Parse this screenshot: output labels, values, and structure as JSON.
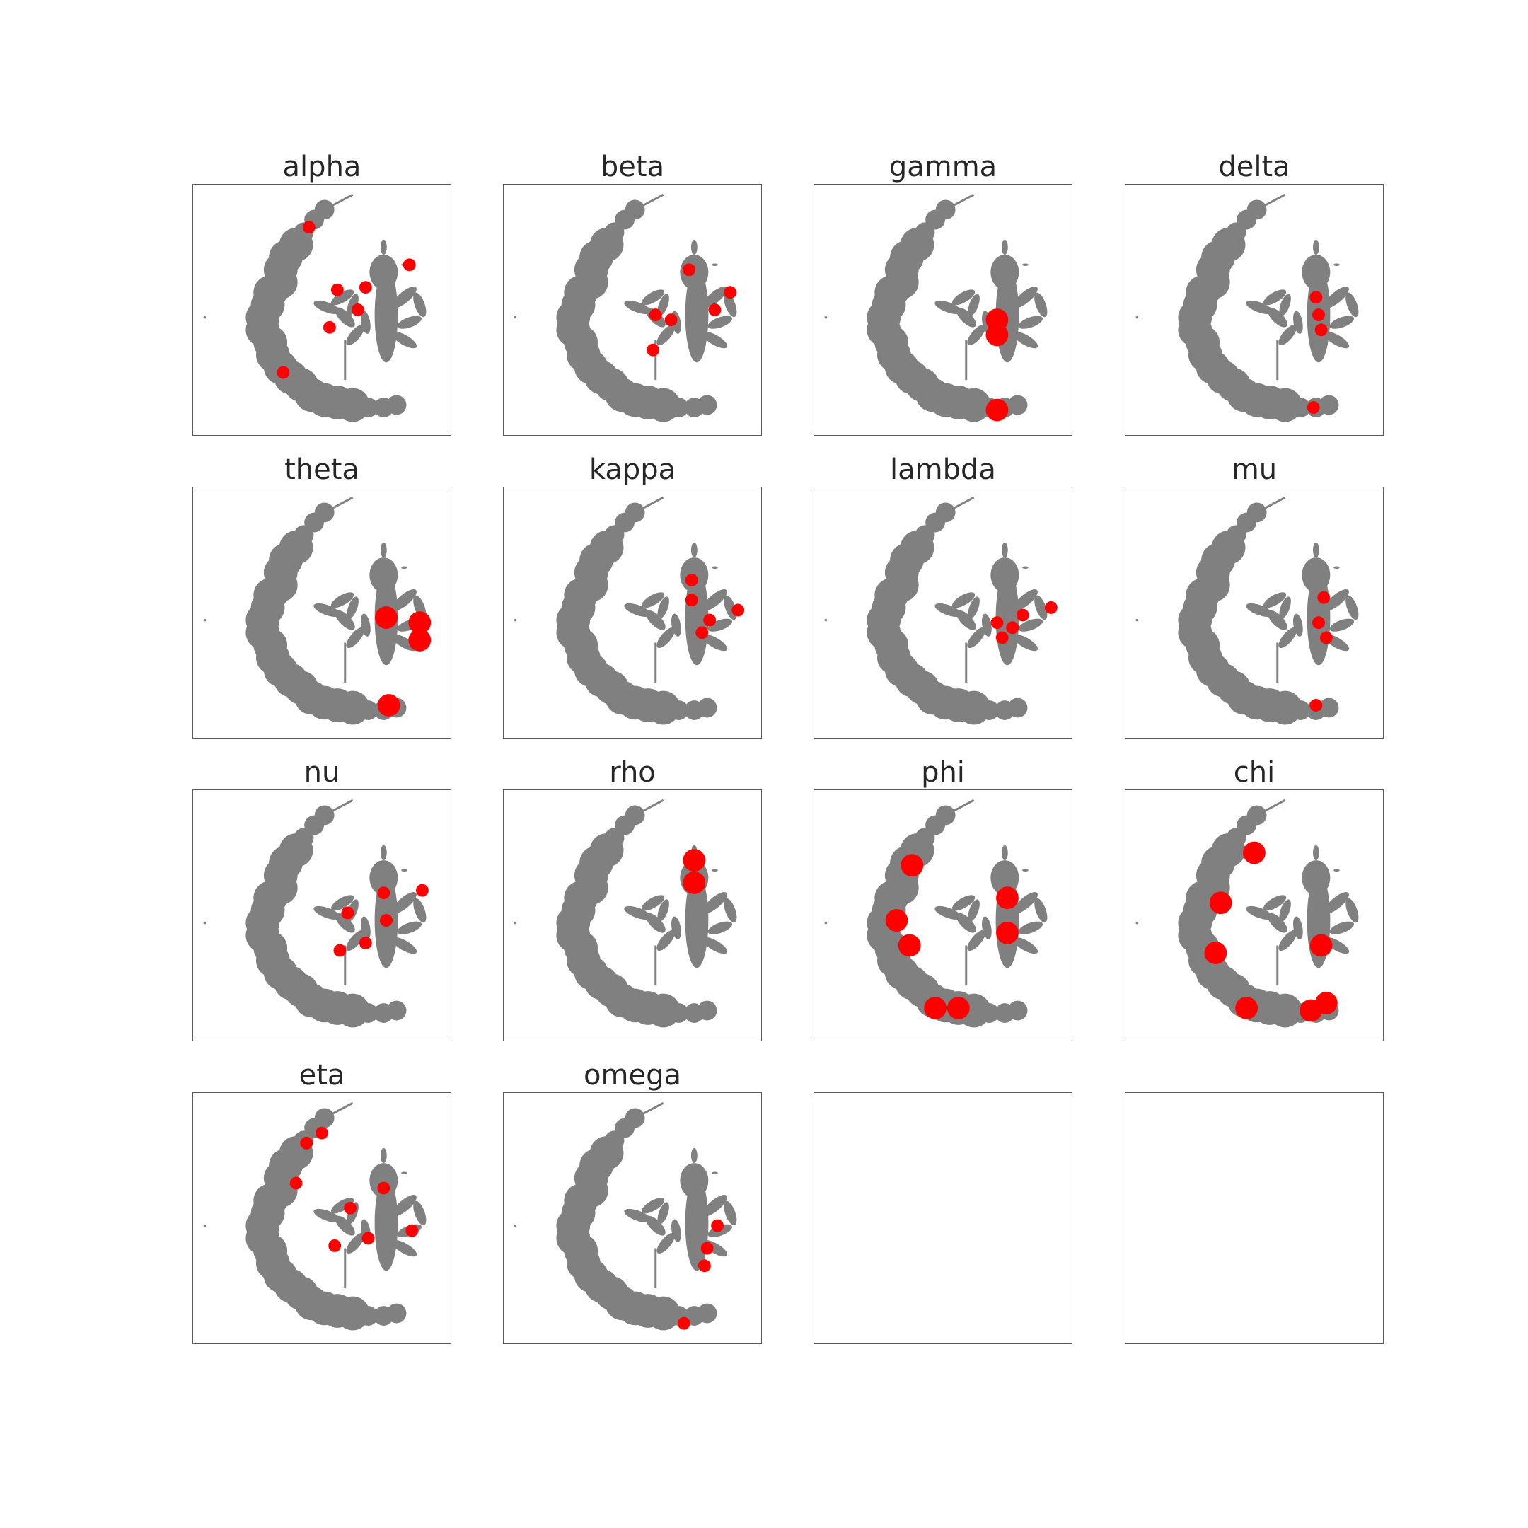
{
  "colors": {
    "background_points": "#808080",
    "highlight_points": "#ff0000"
  },
  "chart_data": {
    "type": "scatter",
    "layout": "grid 4x4",
    "grid": false,
    "axis_ticks": false,
    "xlabel": "",
    "ylabel": "",
    "base_shape": "shared gray embedding of all points; each panel highlights one group in red",
    "panels": [
      {
        "title": "alpha",
        "highlight": [
          [
            0.45,
            0.17
          ],
          [
            0.35,
            0.75
          ],
          [
            0.64,
            0.5
          ],
          [
            0.67,
            0.41
          ],
          [
            0.56,
            0.42
          ],
          [
            0.84,
            0.32
          ],
          [
            0.53,
            0.57
          ]
        ]
      },
      {
        "title": "beta",
        "highlight": [
          [
            0.72,
            0.34
          ],
          [
            0.82,
            0.5
          ],
          [
            0.88,
            0.43
          ],
          [
            0.65,
            0.54
          ],
          [
            0.59,
            0.52
          ],
          [
            0.58,
            0.66
          ]
        ]
      },
      {
        "title": "gamma",
        "highlight": [
          [
            0.71,
            0.54
          ],
          [
            0.71,
            0.6
          ],
          [
            0.71,
            0.9
          ]
        ]
      },
      {
        "title": "delta",
        "highlight": [
          [
            0.75,
            0.52
          ],
          [
            0.76,
            0.58
          ],
          [
            0.74,
            0.45
          ],
          [
            0.73,
            0.89
          ]
        ]
      },
      {
        "title": "theta",
        "highlight": [
          [
            0.88,
            0.54
          ],
          [
            0.88,
            0.61
          ],
          [
            0.75,
            0.52
          ],
          [
            0.76,
            0.87
          ]
        ]
      },
      {
        "title": "kappa",
        "highlight": [
          [
            0.73,
            0.37
          ],
          [
            0.73,
            0.45
          ],
          [
            0.77,
            0.58
          ],
          [
            0.91,
            0.49
          ],
          [
            0.8,
            0.53
          ]
        ]
      },
      {
        "title": "lambda",
        "highlight": [
          [
            0.92,
            0.48
          ],
          [
            0.81,
            0.51
          ],
          [
            0.77,
            0.56
          ],
          [
            0.71,
            0.54
          ],
          [
            0.73,
            0.6
          ]
        ]
      },
      {
        "title": "mu",
        "highlight": [
          [
            0.75,
            0.54
          ],
          [
            0.77,
            0.44
          ],
          [
            0.78,
            0.6
          ],
          [
            0.74,
            0.87
          ]
        ]
      },
      {
        "title": "nu",
        "highlight": [
          [
            0.74,
            0.41
          ],
          [
            0.75,
            0.52
          ],
          [
            0.89,
            0.4
          ],
          [
            0.6,
            0.49
          ],
          [
            0.57,
            0.64
          ],
          [
            0.67,
            0.61
          ]
        ]
      },
      {
        "title": "rho",
        "highlight": [
          [
            0.74,
            0.37
          ],
          [
            0.74,
            0.28
          ]
        ]
      },
      {
        "title": "phi",
        "highlight": [
          [
            0.38,
            0.3
          ],
          [
            0.32,
            0.52
          ],
          [
            0.37,
            0.62
          ],
          [
            0.47,
            0.87
          ],
          [
            0.56,
            0.87
          ],
          [
            0.75,
            0.43
          ],
          [
            0.75,
            0.57
          ]
        ]
      },
      {
        "title": "chi",
        "highlight": [
          [
            0.5,
            0.25
          ],
          [
            0.37,
            0.45
          ],
          [
            0.35,
            0.65
          ],
          [
            0.47,
            0.87
          ],
          [
            0.72,
            0.88
          ],
          [
            0.78,
            0.85
          ],
          [
            0.76,
            0.62
          ]
        ]
      },
      {
        "title": "eta",
        "highlight": [
          [
            0.5,
            0.16
          ],
          [
            0.44,
            0.2
          ],
          [
            0.4,
            0.36
          ],
          [
            0.61,
            0.46
          ],
          [
            0.68,
            0.58
          ],
          [
            0.55,
            0.61
          ],
          [
            0.85,
            0.55
          ],
          [
            0.74,
            0.38
          ]
        ]
      },
      {
        "title": "omega",
        "highlight": [
          [
            0.83,
            0.53
          ],
          [
            0.79,
            0.62
          ],
          [
            0.78,
            0.69
          ],
          [
            0.7,
            0.92
          ]
        ]
      },
      {
        "title": "",
        "highlight": []
      },
      {
        "title": "",
        "highlight": []
      }
    ]
  }
}
